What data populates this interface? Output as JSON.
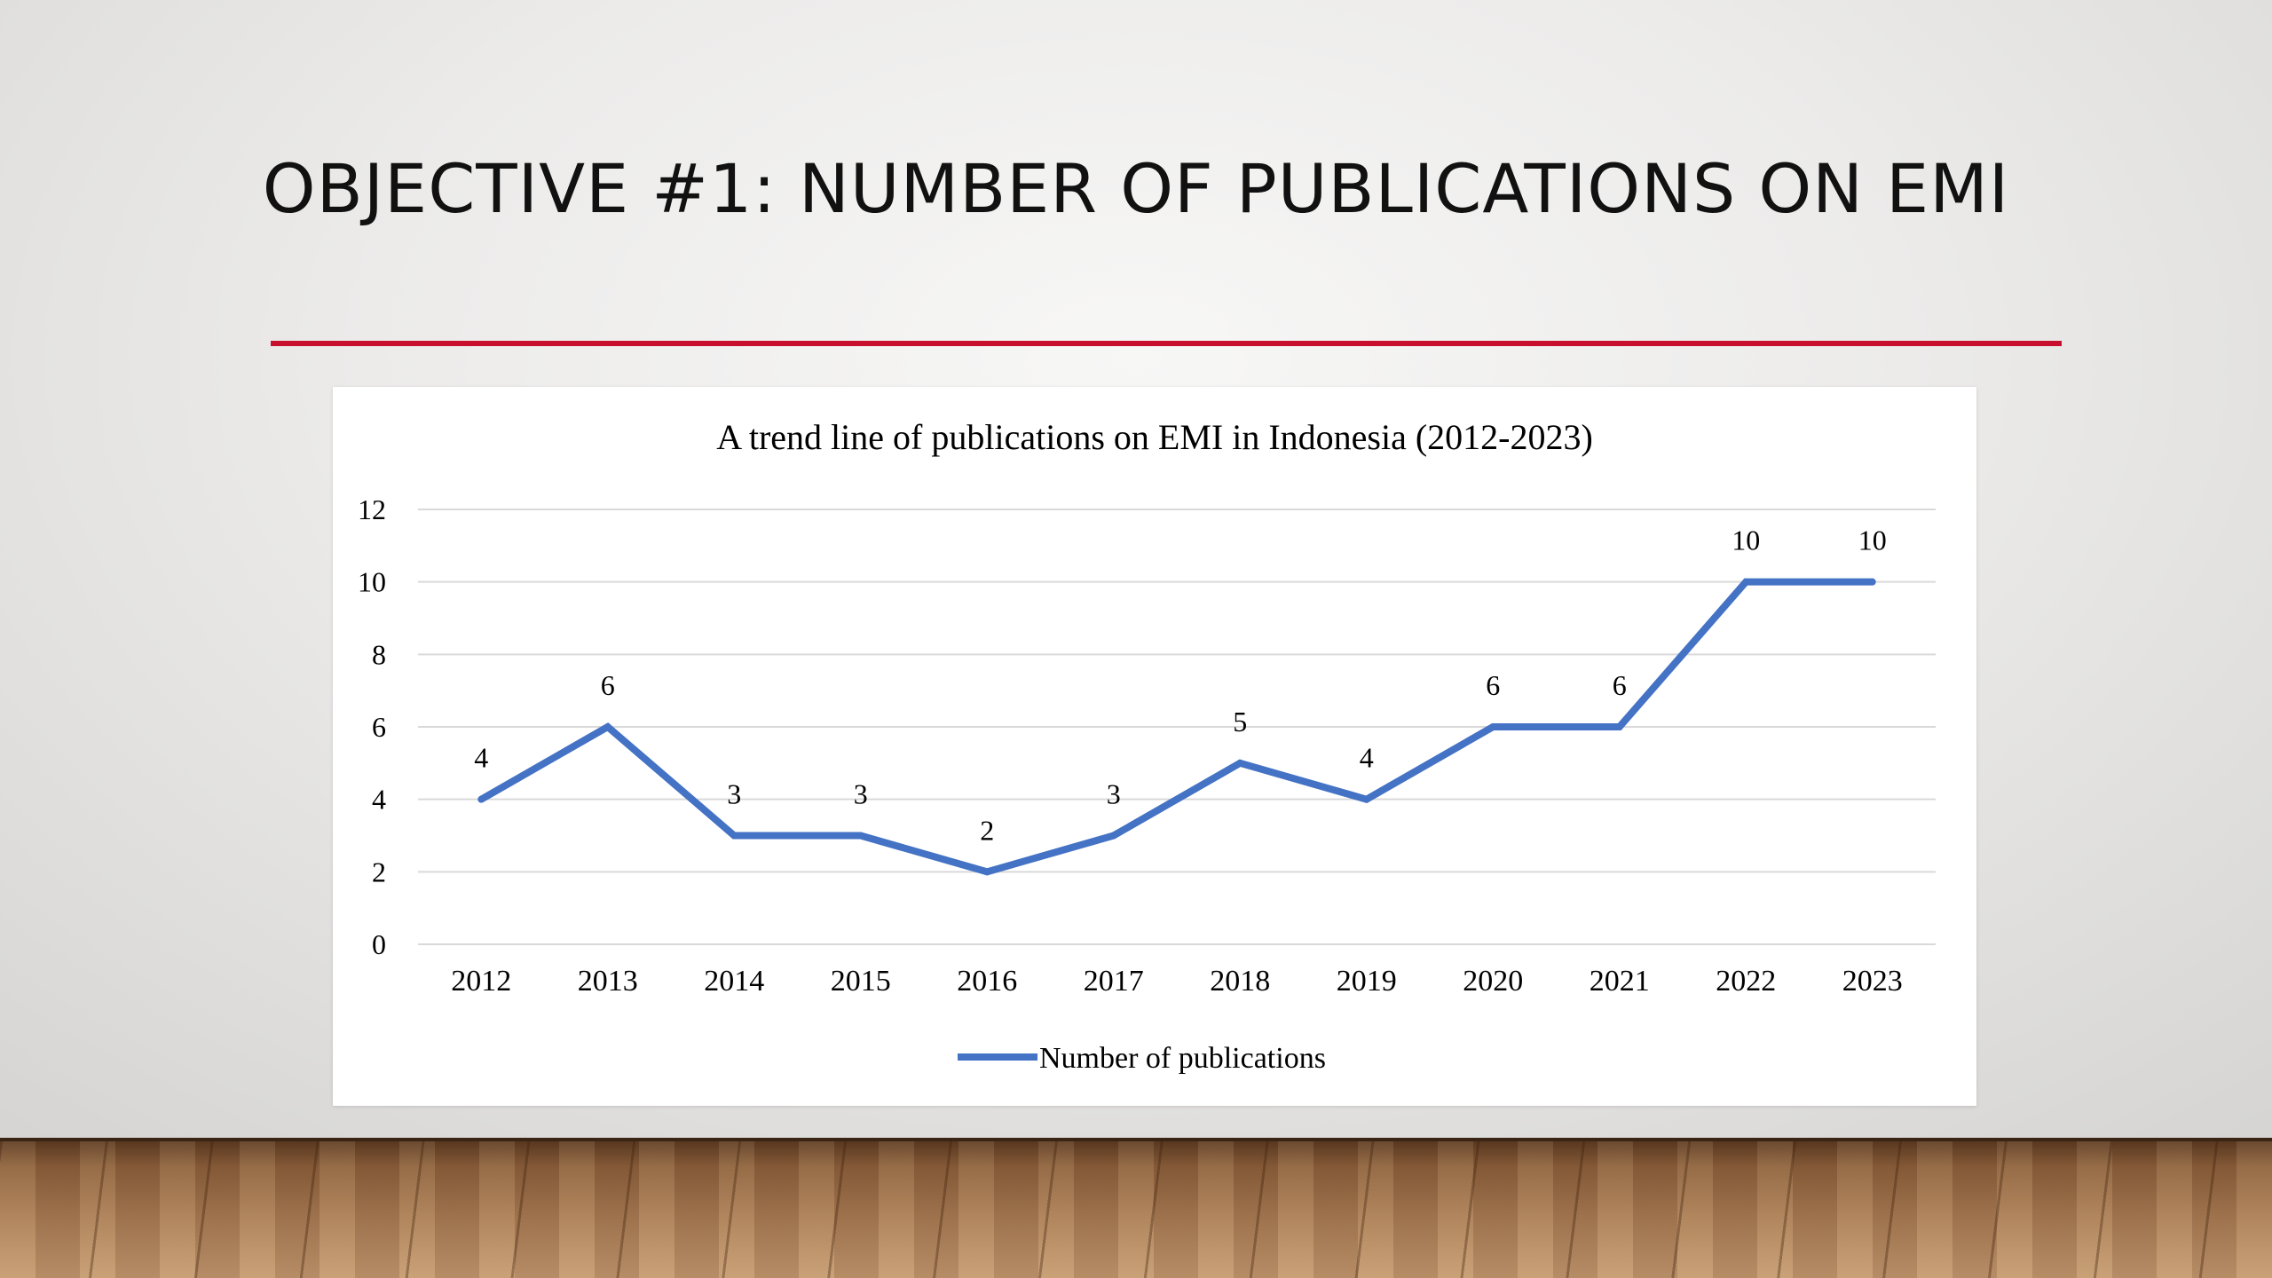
{
  "slide": {
    "title": "OBJECTIVE #1: NUMBER OF PUBLICATIONS ON EMI"
  },
  "colors": {
    "title_rule": "#c8102e",
    "series_line": "#4472c4",
    "gridline": "#d9d9d9"
  },
  "chart_data": {
    "type": "line",
    "title": "A trend line of publications on EMI in Indonesia (2012-2023)",
    "xlabel": "",
    "ylabel": "",
    "categories": [
      "2012",
      "2013",
      "2014",
      "2015",
      "2016",
      "2017",
      "2018",
      "2019",
      "2020",
      "2021",
      "2022",
      "2023"
    ],
    "series": [
      {
        "name": "Number of publications",
        "values": [
          4,
          6,
          3,
          3,
          2,
          3,
          5,
          4,
          6,
          6,
          10,
          10
        ]
      }
    ],
    "ylim": [
      0,
      12
    ],
    "yticks": [
      0,
      2,
      4,
      6,
      8,
      10,
      12
    ],
    "data_labels": true,
    "grid": "horizontal",
    "legend_position": "bottom"
  }
}
